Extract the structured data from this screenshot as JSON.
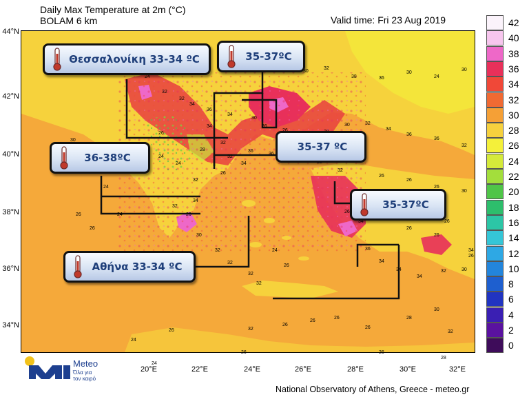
{
  "header": {
    "title_line1": "Daily Max Temperature at 2m (°C)",
    "title_line2": "BOLAM 6 km",
    "valid_time": "Valid time: Fri 23 Aug 2019"
  },
  "axes": {
    "lat_labels": [
      "44°N",
      "42°N",
      "40°N",
      "38°N",
      "36°N",
      "34°N"
    ],
    "lon_labels": [
      "20°E",
      "22°E",
      "24°E",
      "26°E",
      "28°E",
      "30°E",
      "32°E"
    ]
  },
  "legend": {
    "labels": [
      "42",
      "40",
      "38",
      "36",
      "34",
      "32",
      "30",
      "28",
      "26",
      "24",
      "22",
      "20",
      "18",
      "16",
      "14",
      "12",
      "10",
      "8",
      "6",
      "4",
      "2",
      "0"
    ],
    "colors": [
      "#fbf3fb",
      "#f7c6ee",
      "#ee68c8",
      "#e8305a",
      "#f04838",
      "#f06a33",
      "#f5a036",
      "#f6d13e",
      "#f4f03a",
      "#d5ea3a",
      "#a3de3c",
      "#4fc548",
      "#2dbe6c",
      "#2cc6a6",
      "#35c6d7",
      "#2ea8e4",
      "#2385dc",
      "#1e5fcf",
      "#2134c1",
      "#3a1fb3",
      "#5a12a0",
      "#3e0c5a"
    ]
  },
  "callouts": {
    "thessaloniki": "Θεσσαλονίκη 33-34 ºC",
    "thrace": "35-37ºC",
    "west": "36-38ºC",
    "aegean": "35-37 ºC",
    "asia_minor": "35-37ºC",
    "athens": "Αθήνα 33-34 ºC"
  },
  "map_values": [
    "24",
    "24",
    "30",
    "32",
    "36",
    "36",
    "30",
    "32",
    "38",
    "36",
    "30",
    "24",
    "30",
    "32",
    "32",
    "34",
    "36",
    "34",
    "30",
    "26",
    "26",
    "26",
    "28",
    "30",
    "32",
    "34",
    "36",
    "36",
    "32",
    "30",
    "28",
    "26",
    "24",
    "24",
    "28",
    "32",
    "32",
    "34",
    "36",
    "36",
    "34",
    "32",
    "32",
    "32",
    "26",
    "26",
    "26",
    "30",
    "32",
    "34",
    "26",
    "30",
    "32",
    "32",
    "32",
    "32",
    "24",
    "26",
    "26",
    "34",
    "36",
    "34",
    "34",
    "34",
    "32",
    "30",
    "26",
    "26",
    "26",
    "26",
    "26",
    "26",
    "32",
    "32",
    "26",
    "26",
    "26",
    "26",
    "28",
    "30",
    "32",
    "28",
    "26",
    "24",
    "24",
    "26",
    "26",
    "34",
    "26",
    "26",
    "24",
    "24",
    "34"
  ],
  "footer": "National Observatory of Athens, Greece - meteo.gr",
  "logo": {
    "name": "Meteo",
    "tagline_1": "Όλα για",
    "tagline_2": "τον καιρό"
  },
  "colors": {
    "sea_orange": "#f5a93a",
    "land_yellow": "#f6d23c",
    "hot_red": "#e8305a",
    "callout_text": "#1f3f7a",
    "logo_blue": "#1d3f8f",
    "logo_yellow": "#f2c21b"
  }
}
